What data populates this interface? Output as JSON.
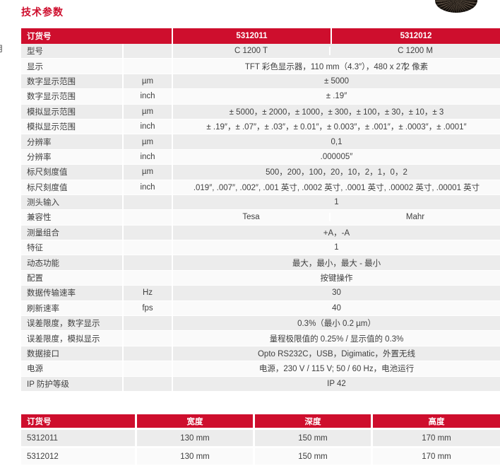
{
  "page": {
    "title": "技术参数",
    "edge_fragment": "用"
  },
  "colors": {
    "accent_red": "#ce0e2d",
    "row_gray": "#ececec",
    "row_light": "#fafafa",
    "text_gray": "#3f3f3f"
  },
  "spec_table": {
    "header": {
      "col1": "订货号",
      "col2": "5312011",
      "col3": "5312012"
    },
    "rows": [
      {
        "label": "型号",
        "unit": "",
        "value_left": "C 1200 T",
        "value_right": "C 1200 M"
      },
      {
        "label": "显示",
        "unit": "",
        "value": "TFT 彩色显示器，110 mm（4.3″），480 x 272 像素"
      },
      {
        "label": "数字显示范围",
        "unit": "µm",
        "value": "± 5000"
      },
      {
        "label": "数字显示范围",
        "unit": "inch",
        "value": "± .19″"
      },
      {
        "label": "模拟显示范围",
        "unit": "µm",
        "value": "± 5000，± 2000，± 1000，± 300，± 100，± 30，± 10，± 3"
      },
      {
        "label": "模拟显示范围",
        "unit": "inch",
        "value": "± .19″，± .07″，± .03″，± 0.01″，± 0.003″，± .001″，± .0003″，± .0001″"
      },
      {
        "label": "分辨率",
        "unit": "µm",
        "value": "0,1"
      },
      {
        "label": "分辨率",
        "unit": "inch",
        "value": ".000005″"
      },
      {
        "label": "标尺刻度值",
        "unit": "µm",
        "value": "500，200，100，20，10，2，1，0，2"
      },
      {
        "label": "标尺刻度值",
        "unit": "inch",
        "value": ".019″, .007″, .002″, .001 英寸, .0002 英寸, .0001 英寸, .00002 英寸, .00001 英寸"
      },
      {
        "label": "测头输入",
        "unit": "",
        "value": "1"
      },
      {
        "label": "兼容性",
        "unit": "",
        "value_left": "Tesa",
        "value_right": "Mahr"
      },
      {
        "label": "测量组合",
        "unit": "",
        "value": "+A，-A"
      },
      {
        "label": "特征",
        "unit": "",
        "value": "1"
      },
      {
        "label": "动态功能",
        "unit": "",
        "value": "最大，最小，最大 - 最小"
      },
      {
        "label": "配置",
        "unit": "",
        "value": "按键操作"
      },
      {
        "label": "数据传输速率",
        "unit": "Hz",
        "value": "30"
      },
      {
        "label": "刷新速率",
        "unit": "fps",
        "value": "40"
      },
      {
        "label": "误差限度，数字显示",
        "unit": "",
        "value": "0.3%（最小 0.2 µm）"
      },
      {
        "label": "误差限度，模拟显示",
        "unit": "",
        "value": "量程极限值的 0.25% / 显示值的 0.3%"
      },
      {
        "label": "数据接口",
        "unit": "",
        "value": "Opto RS232C，USB，Digimatic，外置无线"
      },
      {
        "label": "电源",
        "unit": "",
        "value": "电源，230 V / 115 V; 50 / 60 Hz，电池运行"
      },
      {
        "label": "IP 防护等级",
        "unit": "",
        "value": "IP 42"
      }
    ]
  },
  "dimension_table": {
    "headers": [
      "订货号",
      "宽度",
      "深度",
      "高度"
    ],
    "rows": [
      {
        "order": "5312011",
        "width": "130 mm",
        "depth": "150 mm",
        "height": "170 mm"
      },
      {
        "order": "5312012",
        "width": "130 mm",
        "depth": "150 mm",
        "height": "170 mm"
      }
    ]
  }
}
